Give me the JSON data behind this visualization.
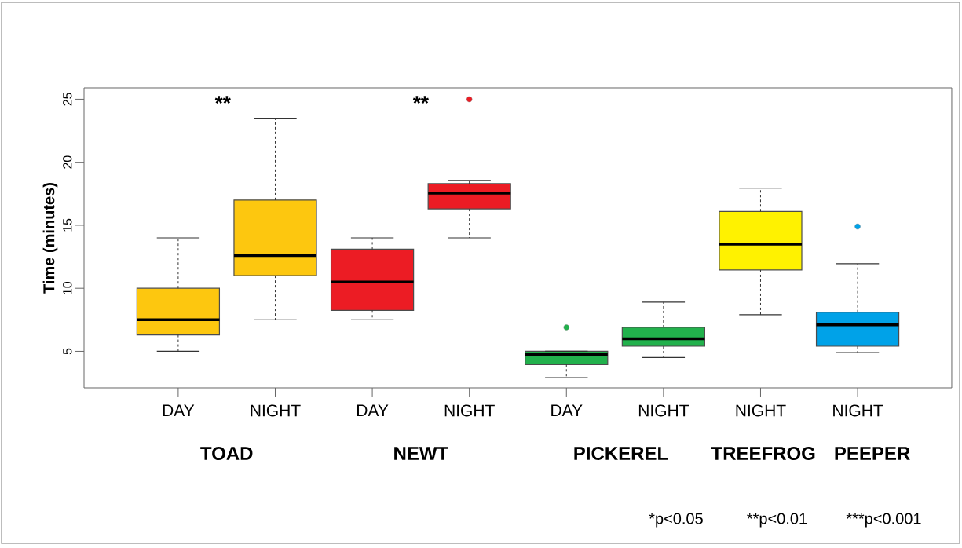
{
  "chart_data": {
    "type": "box",
    "ylabel": "Time (minutes)",
    "categories": [
      "DAY",
      "NIGHT",
      "DAY",
      "NIGHT",
      "DAY",
      "NIGHT",
      "NIGHT",
      "NIGHT"
    ],
    "boxes": [
      {
        "low": 5,
        "q1": 6.3,
        "median": 7.5,
        "q3": 10,
        "high": 14
      },
      {
        "low": 7.5,
        "q1": 11,
        "median": 12.6,
        "q3": 17,
        "high": 23.5
      },
      {
        "low": 7.5,
        "q1": 8.25,
        "median": 10.5,
        "q3": 13.1,
        "high": 14
      },
      {
        "low": 14,
        "q1": 16.3,
        "median": 17.55,
        "q3": 18.3,
        "high": 18.55,
        "outliers": [
          25
        ]
      },
      {
        "low": 2.9,
        "q1": 3.95,
        "median": 4.75,
        "q3": 5,
        "high": 5,
        "outliers": [
          6.9
        ]
      },
      {
        "low": 4.5,
        "q1": 5.4,
        "median": 6,
        "q3": 6.9,
        "high": 8.9
      },
      {
        "low": 7.9,
        "q1": 11.45,
        "median": 13.5,
        "q3": 16.1,
        "high": 17.95
      },
      {
        "low": 4.9,
        "q1": 5.4,
        "median": 7.1,
        "q3": 8.1,
        "high": 11.95,
        "outliers": [
          14.9
        ]
      }
    ],
    "colors": [
      "#fdc70f",
      "#fdc70f",
      "#ec1c24",
      "#ec1c24",
      "#22b14c",
      "#22b14c",
      "#fff200",
      "#00a2e8"
    ],
    "ylim": [
      2.1,
      25.9
    ],
    "yticks": [
      5,
      10,
      15,
      20,
      25
    ],
    "grid": false,
    "annotations": [
      "**",
      "**",
      "TOAD",
      "NEWT",
      "PICKEREL",
      "TREEFROG",
      "PEEPER",
      "*p<0.05",
      "**p<0.01",
      "***p<0.001"
    ]
  }
}
